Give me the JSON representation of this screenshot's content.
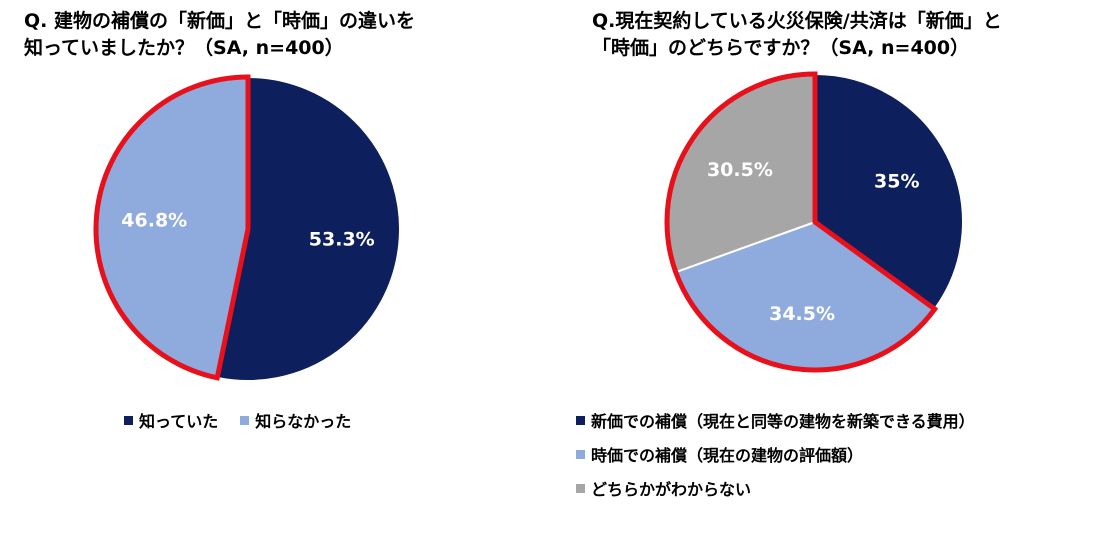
{
  "chart_data": [
    {
      "type": "pie",
      "title_line1": "Q. 建物の補償の「新価」と「時価」の違いを",
      "title_line2": "知っていましたか？（SA, n=400）",
      "labels": [
        "知っていた",
        "知らなかった"
      ],
      "values": [
        53.3,
        46.8
      ],
      "value_labels": [
        "53.3%",
        "46.8%"
      ],
      "colors": [
        "#0d1f5c",
        "#8faadc"
      ],
      "label_colors": [
        "#ffffff",
        "#ffffff"
      ],
      "highlight": {
        "slices": [
          1
        ],
        "color": "#e8101a"
      },
      "legend_position": "bottom"
    },
    {
      "type": "pie",
      "title_line1": "Q.現在契約している火災保険/共済は「新価」と",
      "title_line2": "「時価」のどちらですか？（SA, n=400）",
      "labels": [
        "新価での補償（現在と同等の建物を新築できる費用）",
        "時価での補償（現在の建物の評価額）",
        "どちらかがわからない"
      ],
      "values": [
        35,
        34.5,
        30.5
      ],
      "value_labels": [
        "35%",
        "34.5%",
        "30.5%"
      ],
      "colors": [
        "#0d1f5c",
        "#8faadc",
        "#a6a6a6"
      ],
      "label_colors": [
        "#ffffff",
        "#ffffff",
        "#ffffff"
      ],
      "highlight": {
        "slices": [
          1,
          2
        ],
        "color": "#e8101a"
      },
      "legend_position": "bottom"
    }
  ]
}
